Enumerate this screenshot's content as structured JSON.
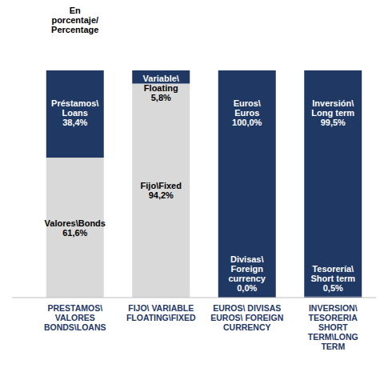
{
  "chart_data": {
    "type": "bar",
    "title": "En\nporcentaje/\nPercentage",
    "stacked": true,
    "data_labels": true,
    "tick_labels": "x",
    "ylim": [
      0,
      100
    ],
    "categories": [
      "PRESTAMOS\\\nVALORES\nBONDS\\LOANS",
      "FIJO\\ VARIABLE\nFLOATING\\FIXED",
      "EUROS\\  DIVISAS\nEUROS\\ FOREIGN\nCURRENCY",
      "INVERSION\\\nTESORERIA\nSHORT\nTERM\\LONG\nTERM"
    ],
    "series": [
      {
        "labels": [
          "Valores\\Bonds",
          "Fijo\\Fixed",
          "Divisas\\\nForeign\ncurrency",
          "Tesorería\\\nShort term"
        ],
        "values": [
          61.6,
          94.2,
          0.0,
          0.5
        ],
        "value_labels": [
          "61,6%",
          "94,2%",
          "0,0%",
          "0,5%"
        ],
        "colors": [
          "#d9d9d9",
          "#d9d9d9",
          "#1f3864",
          "#1f3864"
        ]
      },
      {
        "labels": [
          "Préstamos\\\nLoans",
          "Variable\\\nFloating",
          "Euros\\\nEuros",
          "Inversión\\\nLong term"
        ],
        "values": [
          38.4,
          5.8,
          100.0,
          99.5
        ],
        "value_labels": [
          "38,4%",
          "5,8%",
          "100,0%",
          "99,5%"
        ],
        "colors": [
          "#1f3864",
          "#1f3864",
          "#1f3864",
          "#1f3864"
        ]
      }
    ]
  }
}
